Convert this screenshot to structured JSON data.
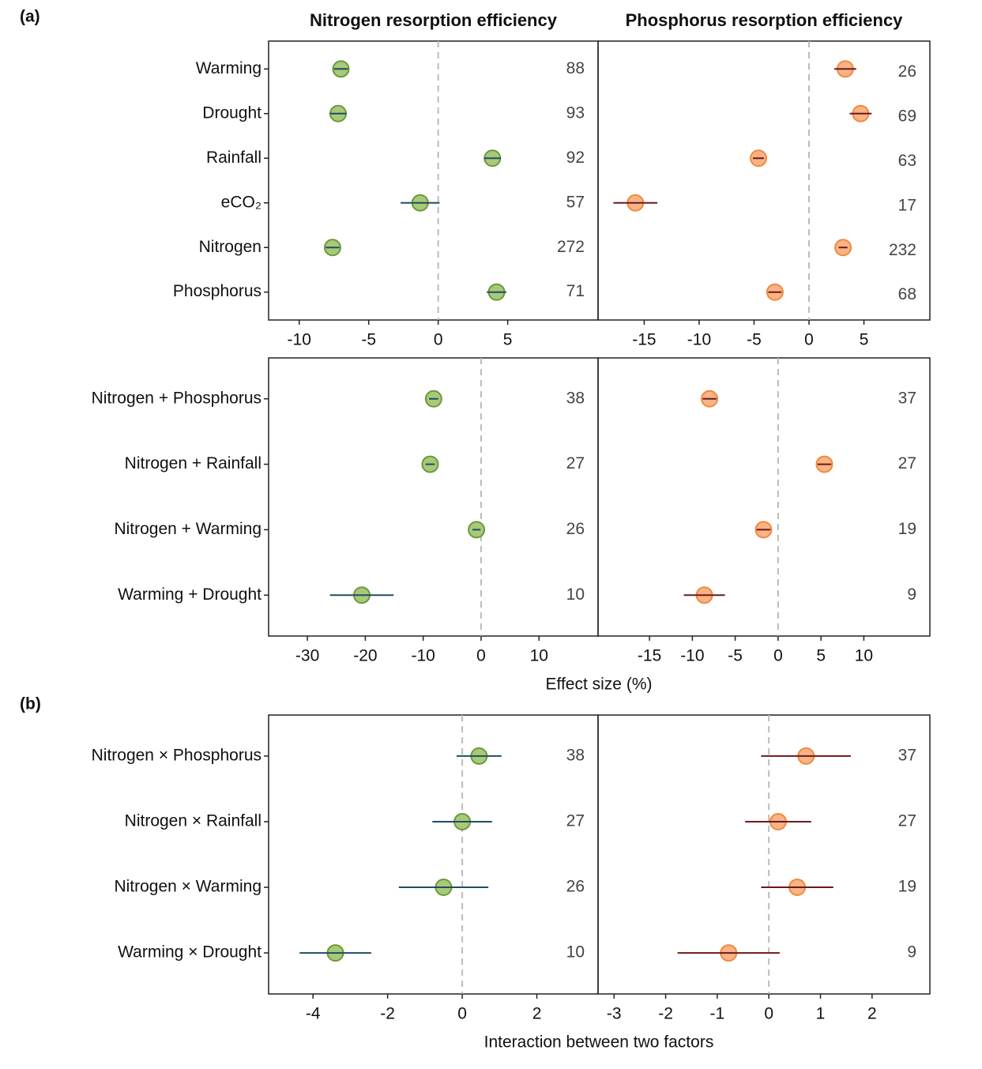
{
  "panel_labels": [
    "(a)",
    "(b)"
  ],
  "chart_data": [
    {
      "type": "forest",
      "title": "Nitrogen resorption efficiency",
      "categories": [
        "Warming",
        "Drought",
        "Rainfall",
        "eCO₂",
        "Nitrogen",
        "Phosphorus"
      ],
      "values": [
        -7.0,
        -7.2,
        3.9,
        -1.3,
        -7.6,
        4.2
      ],
      "errors": [
        0.5,
        0.6,
        0.6,
        1.4,
        0.5,
        0.7
      ],
      "counts": [
        88,
        93,
        92,
        57,
        272,
        71
      ],
      "xlim": [
        -12.2,
        11.5
      ],
      "xticks": [
        -10,
        -5,
        0,
        5
      ],
      "ref_line": 0,
      "color": "#a9c97a",
      "edge_color": "#6a9a3a",
      "bar_color": "#1f4e5f"
    },
    {
      "type": "forest",
      "title": "Phosphorus resorption efficiency",
      "values": [
        3.3,
        4.7,
        -4.6,
        -15.8,
        3.1,
        -3.1
      ],
      "errors": [
        1.0,
        1.0,
        0.5,
        2.0,
        0.4,
        0.6
      ],
      "counts": [
        26,
        69,
        63,
        17,
        232,
        68
      ],
      "xlim": [
        -19.2,
        11.0
      ],
      "xticks": [
        -15,
        -10,
        -5,
        0,
        5
      ],
      "ref_line": 0,
      "color": "#f9b384",
      "edge_color": "#f08a40",
      "bar_color": "#6b1a1a"
    },
    {
      "type": "forest",
      "xlabel": "Effect size (%)",
      "categories": [
        "Nitrogen + Phosphorus",
        "Nitrogen + Rainfall",
        "Nitrogen + Warming",
        "Warming + Drought"
      ],
      "values": [
        -8.2,
        -8.8,
        -0.8,
        -20.6
      ],
      "errors": [
        0.8,
        0.8,
        0.7,
        5.5
      ],
      "counts": [
        38,
        27,
        26,
        10
      ],
      "xlim": [
        -36.7,
        20.2
      ],
      "xticks": [
        -30,
        -20,
        -10,
        0,
        10
      ],
      "ref_line": 0,
      "color": "#a9c97a",
      "edge_color": "#6a9a3a",
      "bar_color": "#1f4e5f"
    },
    {
      "type": "forest",
      "values": [
        -8.0,
        5.4,
        -1.7,
        -8.6
      ],
      "errors": [
        0.8,
        0.8,
        0.8,
        2.4
      ],
      "counts": [
        37,
        27,
        19,
        9
      ],
      "xlim": [
        -21.0,
        17.7
      ],
      "xticks": [
        -15,
        -10,
        -5,
        0,
        5,
        10
      ],
      "ref_line": 0,
      "color": "#f9b384",
      "edge_color": "#f08a40",
      "bar_color": "#6b1a1a"
    },
    {
      "type": "forest",
      "xlabel": "Interaction between two factors",
      "categories": [
        "Nitrogen × Phosphorus",
        "Nitrogen × Rainfall",
        "Nitrogen × Warming",
        "Warming × Drought"
      ],
      "values": [
        0.45,
        0.0,
        -0.5,
        -3.4
      ],
      "errors": [
        0.6,
        0.8,
        1.2,
        0.96
      ],
      "counts": [
        38,
        27,
        26,
        10
      ],
      "xlim": [
        -5.19,
        3.64
      ],
      "xticks": [
        -4,
        -2,
        0,
        2
      ],
      "ref_line": 0,
      "color": "#a9c97a",
      "edge_color": "#6a9a3a",
      "bar_color": "#1f4e5f"
    },
    {
      "type": "forest",
      "values": [
        0.72,
        0.18,
        0.55,
        -0.78
      ],
      "errors": [
        0.87,
        0.64,
        0.7,
        0.99
      ],
      "counts": [
        37,
        27,
        19,
        9
      ],
      "xlim": [
        -3.31,
        3.12
      ],
      "xticks": [
        -3,
        -2,
        -1,
        0,
        1,
        2
      ],
      "ref_line": 0,
      "color": "#f9b384",
      "edge_color": "#f08a40",
      "bar_color": "#6b1a1a"
    }
  ]
}
